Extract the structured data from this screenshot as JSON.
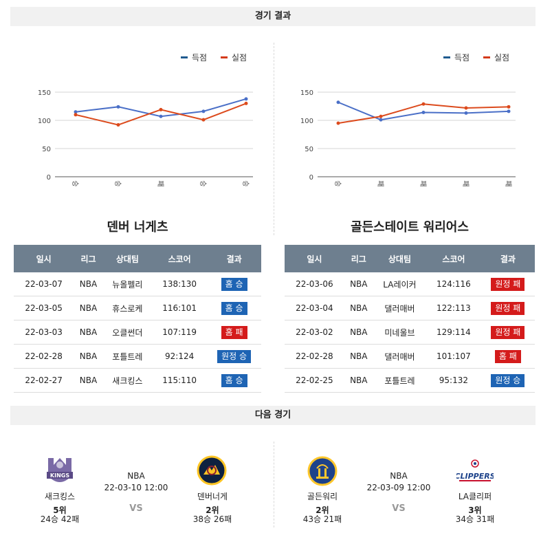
{
  "header": {
    "results_title": "경기 결과",
    "next_title": "다음 경기"
  },
  "legend": {
    "scored": "득점",
    "conceded": "실점",
    "scored_color": "#1f5b8f",
    "conceded_color": "#d43a1a"
  },
  "colors": {
    "scored_line": "#4a6fc7",
    "conceded_line": "#dc4a1c",
    "win_badge": "#1e64b4",
    "lose_badge": "#d41b1b",
    "table_header": "#6e7f8f"
  },
  "teams": [
    {
      "name": "덴버 너게츠",
      "chart_data": {
        "type": "line",
        "categories": [
          "승",
          "승",
          "패",
          "승",
          "승"
        ],
        "series": [
          {
            "name": "득점",
            "values": [
              115,
              124,
              107,
              116,
              138
            ]
          },
          {
            "name": "실점",
            "values": [
              110,
              92,
              119,
              101,
              130
            ]
          }
        ],
        "yticks": [
          0,
          50,
          100,
          150
        ],
        "ylim": [
          0,
          150
        ],
        "legend": "top-right",
        "grid": true
      },
      "table": {
        "headers": [
          "일시",
          "리그",
          "상대팀",
          "스코어",
          "결과"
        ],
        "rows": [
          {
            "date": "22-03-07",
            "league": "NBA",
            "opponent": "뉴올펠리",
            "score": "138:130",
            "result": "홈 승",
            "win": true
          },
          {
            "date": "22-03-05",
            "league": "NBA",
            "opponent": "휴스로케",
            "score": "116:101",
            "result": "홈 승",
            "win": true
          },
          {
            "date": "22-03-03",
            "league": "NBA",
            "opponent": "오클썬더",
            "score": "107:119",
            "result": "홈 패",
            "win": false
          },
          {
            "date": "22-02-28",
            "league": "NBA",
            "opponent": "포틀트레",
            "score": "92:124",
            "result": "원정 승",
            "win": true
          },
          {
            "date": "22-02-27",
            "league": "NBA",
            "opponent": "새크킹스",
            "score": "115:110",
            "result": "홈 승",
            "win": true
          }
        ]
      }
    },
    {
      "name": "골든스테이트 워리어스",
      "chart_data": {
        "type": "line",
        "categories": [
          "승",
          "패",
          "패",
          "패",
          "패"
        ],
        "series": [
          {
            "name": "득점",
            "values": [
              132,
              101,
              114,
              113,
              116
            ]
          },
          {
            "name": "실점",
            "values": [
              95,
              107,
              129,
              122,
              124
            ]
          }
        ],
        "yticks": [
          0,
          50,
          100,
          150
        ],
        "ylim": [
          0,
          150
        ],
        "legend": "top-right",
        "grid": true
      },
      "table": {
        "headers": [
          "일시",
          "리그",
          "상대팀",
          "스코어",
          "결과"
        ],
        "rows": [
          {
            "date": "22-03-06",
            "league": "NBA",
            "opponent": "LA레이커",
            "score": "124:116",
            "result": "원정 패",
            "win": false
          },
          {
            "date": "22-03-04",
            "league": "NBA",
            "opponent": "댈러매버",
            "score": "122:113",
            "result": "원정 패",
            "win": false
          },
          {
            "date": "22-03-02",
            "league": "NBA",
            "opponent": "미네울브",
            "score": "129:114",
            "result": "원정 패",
            "win": false
          },
          {
            "date": "22-02-28",
            "league": "NBA",
            "opponent": "댈러매버",
            "score": "101:107",
            "result": "홈 패",
            "win": false
          },
          {
            "date": "22-02-25",
            "league": "NBA",
            "opponent": "포틀트레",
            "score": "95:132",
            "result": "원정 승",
            "win": true
          }
        ]
      }
    }
  ],
  "next_games": [
    {
      "league": "NBA",
      "datetime": "22-03-10 12:00",
      "vs": "VS",
      "home": {
        "name": "새크킹스",
        "rank": "5위",
        "record": "24승 42패",
        "logo_text": "KINGS"
      },
      "away": {
        "name": "덴버너게",
        "rank": "2위",
        "record": "38승 26패",
        "logo_text": ""
      }
    },
    {
      "league": "NBA",
      "datetime": "22-03-09 12:00",
      "vs": "VS",
      "home": {
        "name": "골든워리",
        "rank": "2위",
        "record": "43승 21패",
        "logo_text": ""
      },
      "away": {
        "name": "LA클리퍼",
        "rank": "3위",
        "record": "34승 31패",
        "logo_text": "CLIPPERS"
      }
    }
  ]
}
